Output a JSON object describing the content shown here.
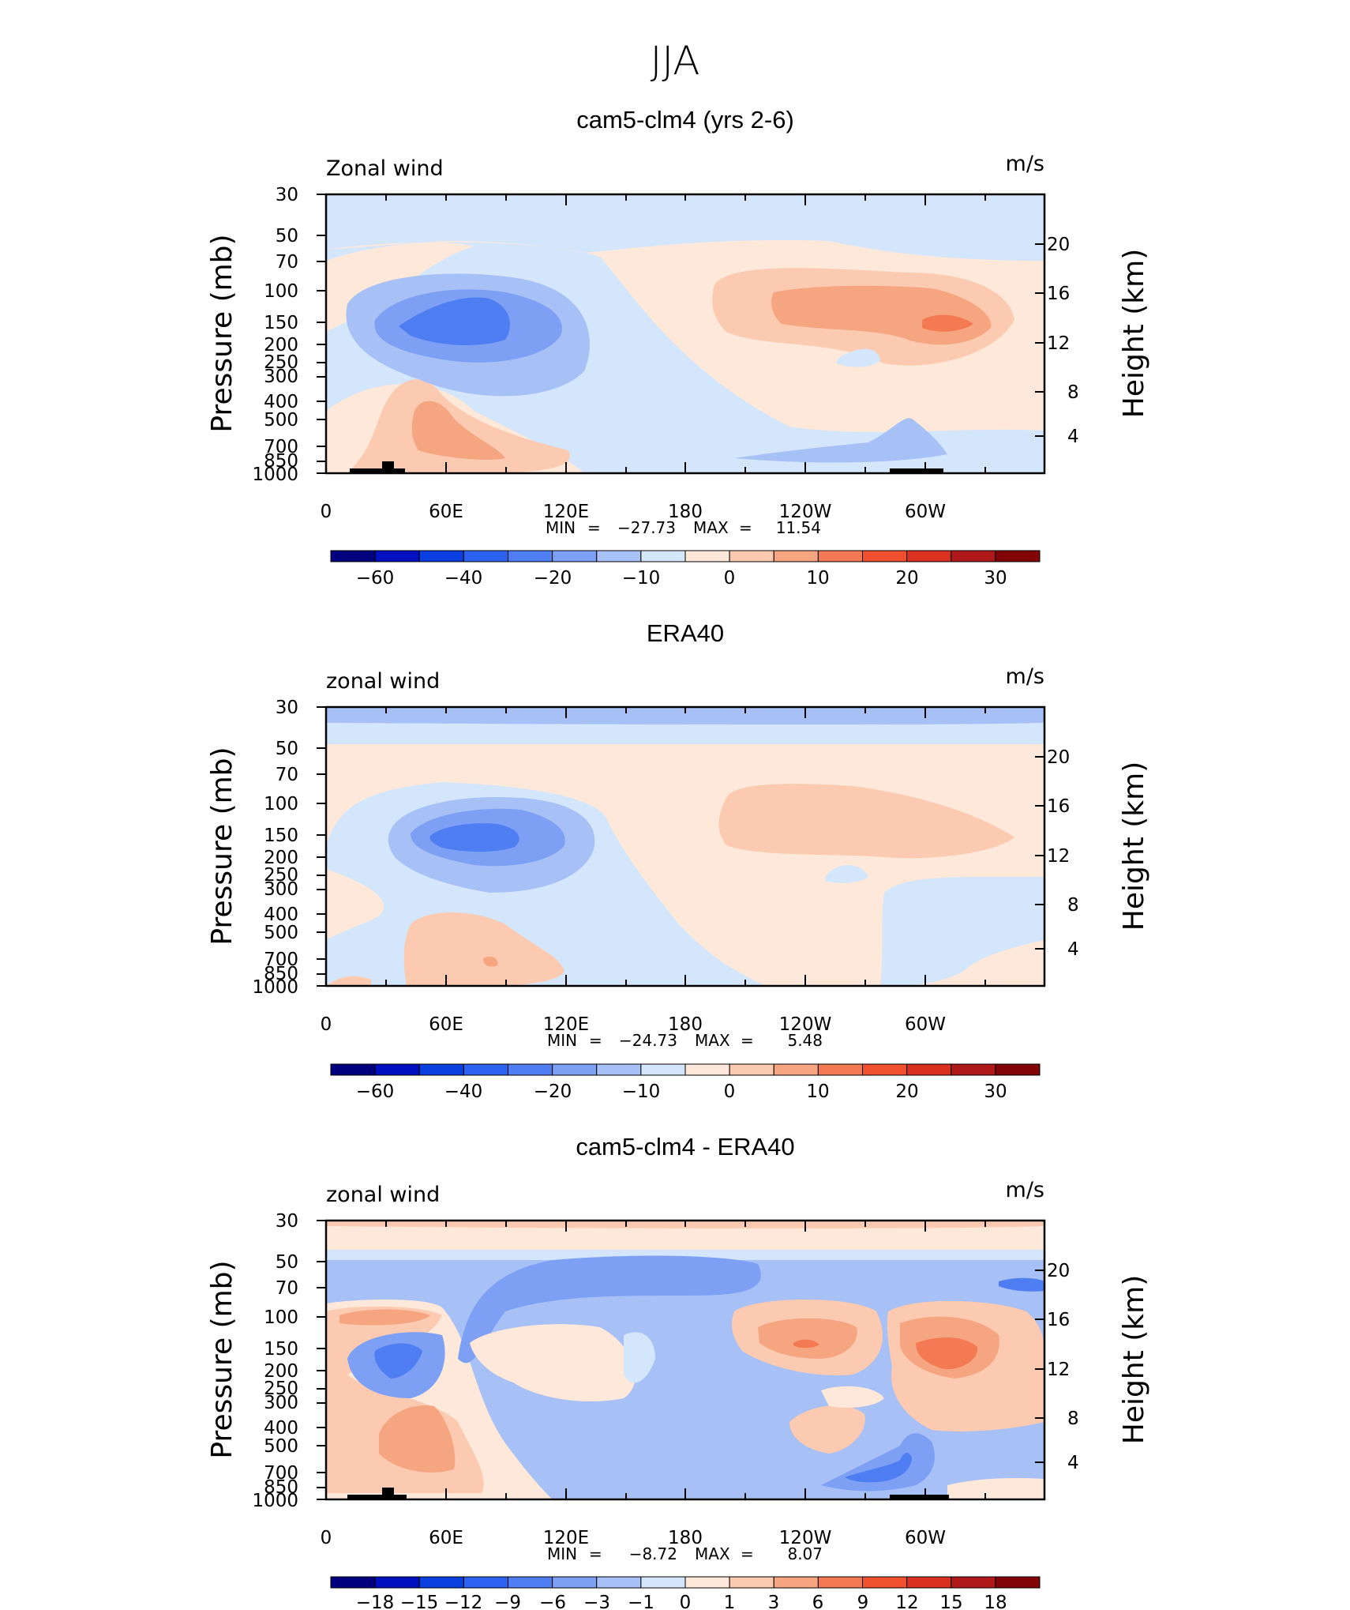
{
  "page_title": "JJA",
  "colors": {
    "wind_levels": [
      "#00007f",
      "#0010c0",
      "#0a3fe0",
      "#2c62f0",
      "#4f7ef2",
      "#7ea0f4",
      "#a7c0f6",
      "#d4e6fb",
      "#fde8d9",
      "#fbcab0",
      "#f6a581",
      "#f37a52",
      "#f0502e",
      "#d9301f",
      "#b0191a",
      "#820406"
    ],
    "diff_levels": [
      "#00007f",
      "#0010c0",
      "#0a3fe0",
      "#2c62f0",
      "#4f7ef2",
      "#7ea0f4",
      "#a7c0f6",
      "#d4e6fb",
      "#fde8d9",
      "#fbcab0",
      "#f6a581",
      "#f37a52",
      "#f0502e",
      "#d9301f",
      "#b0191a",
      "#820406"
    ],
    "topography": "#000000"
  },
  "chart_data": [
    {
      "type": "heatmap",
      "title": "cam5-clm4 (yrs 2-6)",
      "left_label": "Zonal wind",
      "units_label": "m/s",
      "ylabel": "Pressure  (mb)",
      "y2label": "Height  (km)",
      "xticks": [
        "0",
        "60E",
        "120E",
        "180",
        "120W",
        "60W"
      ],
      "yticks": [
        "30",
        "50",
        "70",
        "100",
        "150",
        "200",
        "250",
        "300",
        "400",
        "500",
        "700",
        "850",
        "1000"
      ],
      "y2ticks": [
        "20",
        "16",
        "12",
        "8",
        "4"
      ],
      "stats": {
        "min_label": "MIN",
        "min": "−27.73",
        "max_label": "MAX",
        "max": "11.54"
      },
      "colorbar_labels": [
        "−60",
        "−40",
        "−20",
        "−10",
        "0",
        "10",
        "20",
        "30"
      ],
      "features": [
        {
          "lon": 90,
          "p": 150,
          "value": -27.7
        },
        {
          "lon": 310,
          "p": 150,
          "value": 11.5
        },
        {
          "lon": 60,
          "p": 600,
          "value": 8
        }
      ]
    },
    {
      "type": "heatmap",
      "title": "ERA40",
      "left_label": "zonal wind",
      "units_label": "m/s",
      "ylabel": "Pressure  (mb)",
      "y2label": "Height  (km)",
      "xticks": [
        "0",
        "60E",
        "120E",
        "180",
        "120W",
        "60W"
      ],
      "yticks": [
        "30",
        "50",
        "70",
        "100",
        "150",
        "200",
        "250",
        "300",
        "400",
        "500",
        "700",
        "850",
        "1000"
      ],
      "y2ticks": [
        "20",
        "16",
        "12",
        "8",
        "4"
      ],
      "stats": {
        "min_label": "MIN",
        "min": "−24.73",
        "max_label": "MAX",
        "max": "5.48"
      },
      "colorbar_labels": [
        "−60",
        "−40",
        "−20",
        "−10",
        "0",
        "10",
        "20",
        "30"
      ],
      "features": [
        {
          "lon": 80,
          "p": 150,
          "value": -24.7
        },
        {
          "lon": 280,
          "p": 120,
          "value": 5.5
        }
      ]
    },
    {
      "type": "heatmap",
      "title": "cam5-clm4 - ERA40",
      "left_label": "zonal wind",
      "units_label": "m/s",
      "ylabel": "Pressure  (mb)",
      "y2label": "Height  (km)",
      "xticks": [
        "0",
        "60E",
        "120E",
        "180",
        "120W",
        "60W"
      ],
      "yticks": [
        "30",
        "50",
        "70",
        "100",
        "150",
        "200",
        "250",
        "300",
        "400",
        "500",
        "700",
        "850",
        "1000"
      ],
      "y2ticks": [
        "20",
        "16",
        "12",
        "8",
        "4"
      ],
      "stats": {
        "min_label": "MIN",
        "min": "−8.72",
        "max_label": "MAX",
        "max": "8.07"
      },
      "colorbar_labels": [
        "−18",
        "−15",
        "−12",
        "−9",
        "−6",
        "−3",
        "−1",
        "0",
        "1",
        "3",
        "6",
        "9",
        "12",
        "15",
        "18"
      ],
      "features": [
        {
          "lon": 300,
          "p": 150,
          "value": 8.07
        },
        {
          "lon": 280,
          "p": 750,
          "value": -8.72
        }
      ]
    }
  ]
}
